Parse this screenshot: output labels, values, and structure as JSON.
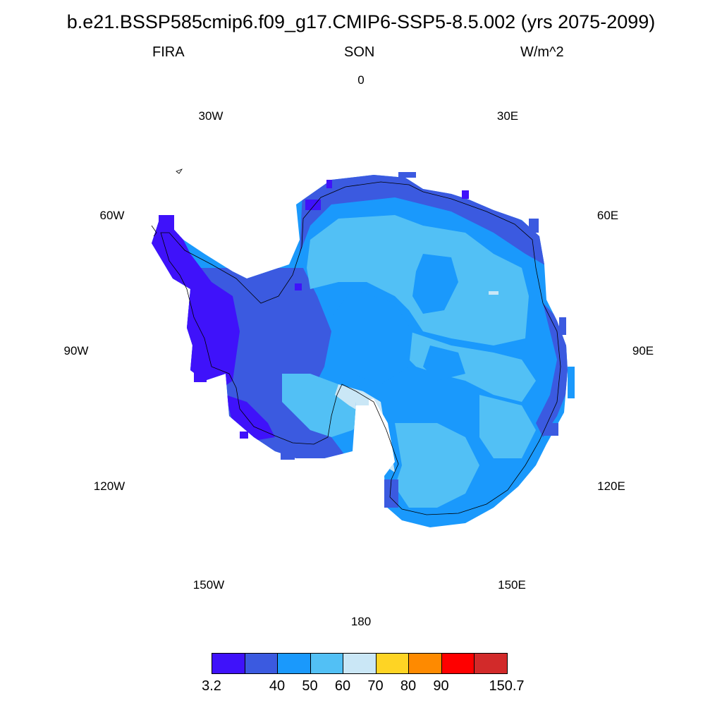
{
  "header": {
    "title": "b.e21.BSSP585cmip6.f09_g17.CMIP6-SSP5-8.5.002 (yrs 2075-2099)",
    "variable": "FIRA",
    "season": "SON",
    "units": "W/m^2"
  },
  "map": {
    "projection": "south-polar-stereographic",
    "region": "Antarctica",
    "longitude_labels": [
      "0",
      "30E",
      "60E",
      "90E",
      "120E",
      "150E",
      "180",
      "150W",
      "120W",
      "90W",
      "60W",
      "30W"
    ]
  },
  "colorbar": {
    "colors": [
      "#3f12fa",
      "#3b5ae0",
      "#1a99fc",
      "#52c0f5",
      "#cae7f6",
      "#fed424",
      "#fe8a00",
      "#fe0000",
      "#d22a2a"
    ],
    "labels": [
      "3.2",
      "",
      "40",
      "50",
      "60",
      "70",
      "80",
      "90",
      "",
      "150.7"
    ]
  },
  "chart_data": {
    "type": "heatmap",
    "title": "b.e21.BSSP585cmip6.f09_g17.CMIP6-SSP5-8.5.002 (yrs 2075-2099)",
    "variable": "FIRA",
    "season": "SON",
    "units": "W/m^2",
    "levels": [
      3.2,
      40,
      50,
      60,
      70,
      80,
      90,
      150.7
    ],
    "dominant_ranges": {
      "antarctic_peninsula": "3.2-40",
      "west_antarctica": "3.2-50",
      "interior_plateau": "40-60",
      "east_antarctica_coast": "40-60",
      "ross_ice_shelf_edge": "60-70"
    }
  }
}
